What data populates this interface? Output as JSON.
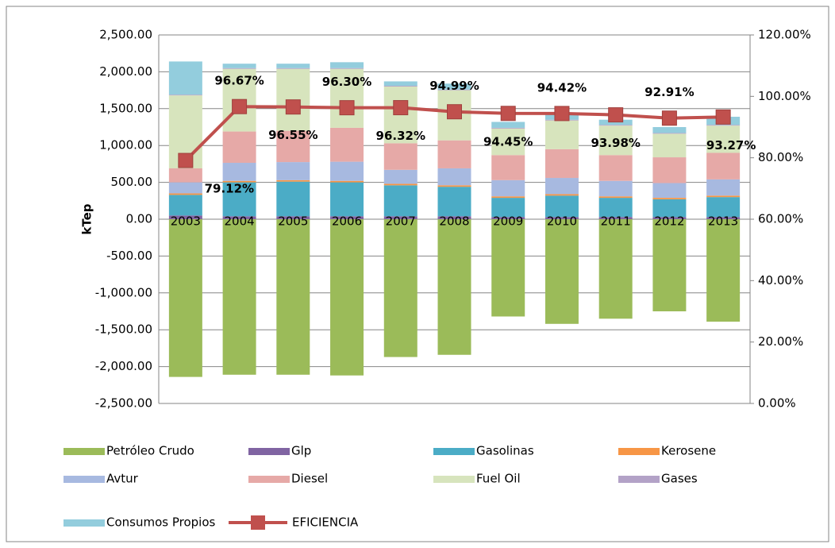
{
  "chart_data": {
    "type": "stacked_bar_line",
    "categories": [
      "2003",
      "2004",
      "2005",
      "2006",
      "2007",
      "2008",
      "2009",
      "2010",
      "2011",
      "2012",
      "2013"
    ],
    "ylabel": "kTep",
    "ylim": [
      -2500,
      2500
    ],
    "yticks": [
      {
        "value": 2500,
        "label": "2,500.00"
      },
      {
        "value": 2000,
        "label": "2,000.00"
      },
      {
        "value": 1500,
        "label": "1,500.00"
      },
      {
        "value": 1000,
        "label": "1,000.00"
      },
      {
        "value": 500,
        "label": "500.00"
      },
      {
        "value": 0,
        "label": "0.00"
      },
      {
        "value": -500,
        "label": "-500.00"
      },
      {
        "value": -1000,
        "label": "-1,000.00"
      },
      {
        "value": -1500,
        "label": "-1,500.00"
      },
      {
        "value": -2000,
        "label": "-2,000.00"
      },
      {
        "value": -2500,
        "label": "-2,500.00"
      }
    ],
    "y2lim": [
      0,
      120
    ],
    "y2ticks": [
      {
        "value": 120,
        "label": "120.00%"
      },
      {
        "value": 100,
        "label": "100.00%"
      },
      {
        "value": 80,
        "label": "80.00%"
      },
      {
        "value": 60,
        "label": "60.00%"
      },
      {
        "value": 40,
        "label": "40.00%"
      },
      {
        "value": 20,
        "label": "20.00%"
      },
      {
        "value": 0,
        "label": "0.00%"
      }
    ],
    "grid": true,
    "legend": "bottom",
    "series": [
      {
        "name": "Petróleo Crudo",
        "color": "#9bbb59",
        "values": [
          -2140,
          -2110,
          -2110,
          -2120,
          -1870,
          -1840,
          -1320,
          -1420,
          -1350,
          -1250,
          -1390
        ]
      },
      {
        "name": "Glp",
        "color": "#8064a2",
        "values": [
          50,
          40,
          40,
          40,
          40,
          40,
          30,
          30,
          30,
          30,
          30
        ]
      },
      {
        "name": "Gasolinas",
        "color": "#4bacc6",
        "values": [
          280,
          460,
          470,
          460,
          420,
          400,
          260,
          290,
          260,
          240,
          270
        ]
      },
      {
        "name": "Kerosene",
        "color": "#f79646",
        "values": [
          20,
          20,
          20,
          20,
          20,
          20,
          20,
          20,
          20,
          20,
          20
        ]
      },
      {
        "name": "Avtur",
        "color": "#a7b9e0",
        "values": [
          150,
          245,
          245,
          260,
          190,
          230,
          220,
          220,
          210,
          200,
          220
        ]
      },
      {
        "name": "Diesel",
        "color": "#e6a9a7",
        "values": [
          190,
          425,
          425,
          460,
          360,
          380,
          340,
          390,
          350,
          350,
          360
        ]
      },
      {
        "name": "Fuel Oil",
        "color": "#d7e4bd",
        "values": [
          990,
          850,
          840,
          800,
          770,
          680,
          360,
          390,
          400,
          320,
          370
        ]
      },
      {
        "name": "Gases",
        "color": "#b3a2c7",
        "values": [
          10,
          10,
          10,
          10,
          10,
          10,
          10,
          10,
          10,
          10,
          10
        ]
      },
      {
        "name": "Consumos Propios",
        "color": "#93cddd",
        "values": [
          450,
          60,
          60,
          80,
          60,
          80,
          80,
          70,
          70,
          80,
          110
        ]
      },
      {
        "name": "EFICIENCIA",
        "color": "#c0504d",
        "axis": "y2",
        "type": "line",
        "values": [
          79.12,
          96.67,
          96.55,
          96.3,
          96.32,
          94.99,
          94.45,
          94.42,
          93.98,
          92.91,
          93.27
        ],
        "value_labels": [
          "79.12%",
          "96.67%",
          "96.55%",
          "96.30%",
          "96.32%",
          "94.99%",
          "94.45%",
          "94.42%",
          "93.98%",
          "92.91%",
          "93.27%"
        ]
      }
    ]
  }
}
